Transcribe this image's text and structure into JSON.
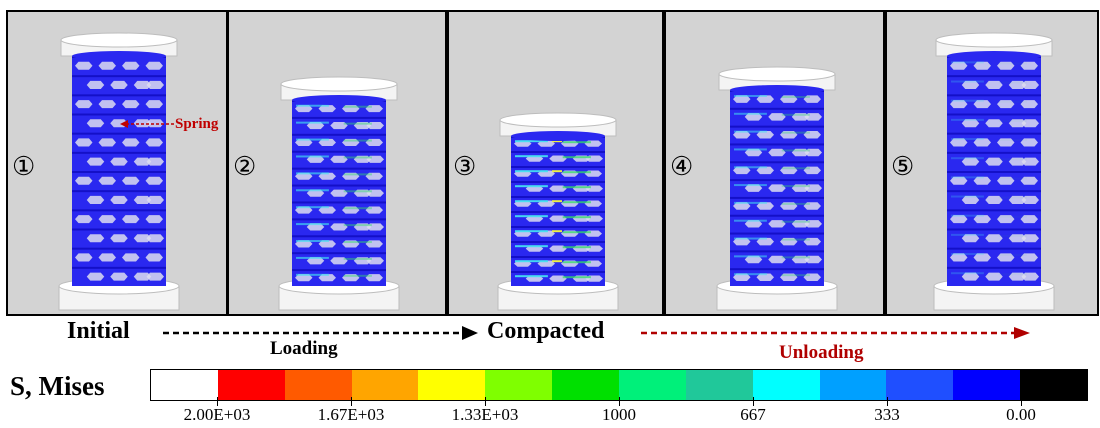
{
  "panels": [
    {
      "id": "p1",
      "label": "①",
      "state": "initial"
    },
    {
      "id": "p2",
      "label": "②",
      "state": "loading"
    },
    {
      "id": "p3",
      "label": "③",
      "state": "compacted"
    },
    {
      "id": "p4",
      "label": "④",
      "state": "unloading"
    },
    {
      "id": "p5",
      "label": "⑤",
      "state": "recovered"
    }
  ],
  "annotation": {
    "spring_label": "Spring"
  },
  "process": {
    "initial": "Initial",
    "loading": "Loading",
    "compacted": "Compacted",
    "unloading": "Unloading"
  },
  "legend": {
    "title": "S, Mises",
    "colors": [
      "#ffffff",
      "#ff0000",
      "#ff5a00",
      "#ffa500",
      "#ffff00",
      "#7fff00",
      "#00e000",
      "#00f07a",
      "#20c89a",
      "#00ffff",
      "#00a0ff",
      "#1f4fff",
      "#0000ff",
      "#000000"
    ],
    "tick_labels": [
      "2.00E+03",
      "1.67E+03",
      "1.33E+03",
      "1000",
      "667",
      "333",
      "0.00"
    ]
  },
  "colors": {
    "structure_blue": "#2a28f0",
    "stress_cyan": "#44e0f0",
    "stress_green": "#33dd66",
    "stress_yellow": "#f0f040",
    "platen": "#f4f4f4",
    "panel_bg": "#d3d3d3",
    "unloading_red": "#b00000"
  }
}
